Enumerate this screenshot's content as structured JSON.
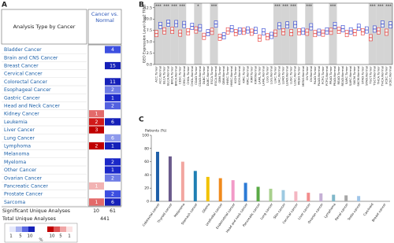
{
  "panel_labels": [
    "A",
    "B",
    "C"
  ],
  "table": {
    "header": {
      "title": "Analysis Type by Cancer",
      "column": "Cancer vs. Normal"
    },
    "rows": [
      {
        "name": "Bladder Cancer",
        "up": null,
        "down": {
          "value": 4,
          "color": "#3d4fe0"
        }
      },
      {
        "name": "Brain and CNS Cancer",
        "up": null,
        "down": null
      },
      {
        "name": "Breast Cancer",
        "up": null,
        "down": {
          "value": 15,
          "color": "#1520b8"
        }
      },
      {
        "name": "Cervical Cancer",
        "up": null,
        "down": null
      },
      {
        "name": "Colorectal Cancer",
        "up": null,
        "down": {
          "value": 11,
          "color": "#1520b8"
        }
      },
      {
        "name": "Esophageal Cancer",
        "up": null,
        "down": {
          "value": 2,
          "color": "#6f7de6"
        }
      },
      {
        "name": "Gastric Cancer",
        "up": null,
        "down": {
          "value": 1,
          "color": "#1b28c8"
        }
      },
      {
        "name": "Head and Neck Cancer",
        "up": null,
        "down": {
          "value": 2,
          "color": "#5361e0"
        }
      },
      {
        "name": "Kidney Cancer",
        "up": {
          "value": 1,
          "color": "#e36a6a"
        },
        "down": null
      },
      {
        "name": "Leukemia",
        "up": {
          "value": 2,
          "color": "#d11919"
        },
        "down": {
          "value": 6,
          "color": "#1520b8"
        }
      },
      {
        "name": "Liver Cancer",
        "up": {
          "value": 3,
          "color": "#c00000"
        },
        "down": null
      },
      {
        "name": "Lung Cancer",
        "up": null,
        "down": {
          "value": 6,
          "color": "#8e9aec"
        }
      },
      {
        "name": "Lymphoma",
        "up": {
          "value": 2,
          "color": "#c00000"
        },
        "down": {
          "value": 1,
          "color": "#1520b8"
        }
      },
      {
        "name": "Melanoma",
        "up": null,
        "down": null
      },
      {
        "name": "Myeloma",
        "up": null,
        "down": {
          "value": 2,
          "color": "#1b28c8"
        }
      },
      {
        "name": "Other Cancer",
        "up": null,
        "down": {
          "value": 1,
          "color": "#1b28c8"
        }
      },
      {
        "name": "Ovarian Cancer",
        "up": null,
        "down": {
          "value": 2,
          "color": "#6f7de6"
        }
      },
      {
        "name": "Pancreatic Cancer",
        "up": {
          "value": 1,
          "color": "#f2b3b3"
        },
        "down": null
      },
      {
        "name": "Prostate Cancer",
        "up": null,
        "down": {
          "value": 2,
          "color": "#3d4fe0"
        }
      },
      {
        "name": "Sarcoma",
        "up": {
          "value": 1,
          "color": "#e36a6a"
        },
        "down": {
          "value": 6,
          "color": "#1520b8"
        }
      }
    ],
    "significant": {
      "label": "Significant Unique Analyses",
      "up": 10,
      "down": 61
    },
    "total": {
      "label": "Total Unique Analyses",
      "value": 441
    },
    "legend": {
      "blue_labels": [
        1,
        5,
        10
      ],
      "red_labels": [
        10,
        5,
        1
      ],
      "unit": "%",
      "blue_colors": [
        "#e6e9fb",
        "#a9b2f0",
        "#5a68e2",
        "#1520b8"
      ],
      "red_colors": [
        "#c00000",
        "#e05555",
        "#f0a5a5",
        "#fbe3e3"
      ]
    }
  },
  "chart_data": [
    {
      "type": "box",
      "y_label": "GEO Expression Level (log2 TPM)",
      "categories": [
        "ACC.Tumor",
        "ACC.Normal",
        "BLCA.Tumor",
        "BLCA.Normal",
        "BRCA.Tumor",
        "BRCA.Normal",
        "CESC.Tumor",
        "CESC.Normal",
        "CHOL.Tumor",
        "CHOL.Normal",
        "COAD.Tumor",
        "COAD.Normal",
        "DLBC.Tumor",
        "DLBC.Normal",
        "ESCA.Tumor",
        "ESCA.Normal",
        "GBM.Tumor",
        "GBM.Normal",
        "HNSC.Tumor",
        "HNSC.Normal",
        "KICH.Tumor",
        "KICH.Normal",
        "KIRC.Tumor",
        "KIRC.Normal",
        "KIRP.Tumor",
        "KIRP.Normal",
        "LAML.Tumor",
        "LAML.Normal",
        "LGG.Tumor",
        "LGG.Normal",
        "LIHC.Tumor",
        "LIHC.Normal",
        "LUAD.Tumor",
        "LUAD.Normal",
        "LUSC.Tumor",
        "LUSC.Normal",
        "MESO.Tumor",
        "MESO.Normal",
        "OV.Tumor",
        "OV.Normal",
        "PAAD.Tumor",
        "PAAD.Normal",
        "PCPG.Tumor",
        "PCPG.Normal",
        "PRAD.Tumor",
        "PRAD.Normal",
        "READ.Tumor",
        "READ.Normal",
        "SARC.Tumor",
        "SARC.Normal",
        "SKCM.Tumor",
        "SKCM.Normal",
        "STAD.Tumor",
        "STAD.Normal",
        "TGCT.Tumor",
        "TGCT.Normal",
        "THCA.Tumor",
        "THCA.Normal",
        "UCEC.Tumor",
        "UCEC.Normal"
      ],
      "median": [
        6.8,
        8.6,
        7.4,
        9.1,
        7.5,
        9.0,
        6.9,
        8.8,
        7.2,
        8.4,
        7.6,
        8.1,
        6.2,
        7.0,
        7.3,
        8.9,
        6.0,
        6.3,
        7.4,
        7.9,
        7.0,
        7.4,
        7.3,
        7.6,
        7.1,
        7.5,
        5.8,
        7.2,
        6.1,
        6.4,
        6.9,
        8.5,
        7.2,
        8.7,
        7.0,
        8.8,
        7.2,
        7.3,
        7.1,
        8.3,
        6.8,
        7.1,
        6.9,
        7.4,
        7.3,
        8.6,
        7.5,
        7.9,
        6.8,
        7.4,
        7.0,
        8.2,
        7.2,
        7.6,
        5.9,
        7.8,
        7.4,
        8.9,
        7.1,
        8.7
      ],
      "q1": [
        6.1,
        7.9,
        6.7,
        8.4,
        6.8,
        8.3,
        6.2,
        8.1,
        6.5,
        7.7,
        6.9,
        7.4,
        5.5,
        6.3,
        6.6,
        8.2,
        5.3,
        5.6,
        6.7,
        7.2,
        6.3,
        6.7,
        6.6,
        6.9,
        6.4,
        6.8,
        5.1,
        6.5,
        5.4,
        5.7,
        6.2,
        7.8,
        6.5,
        8.0,
        6.3,
        8.1,
        6.5,
        6.6,
        6.4,
        7.6,
        6.1,
        6.4,
        6.2,
        6.7,
        6.6,
        7.9,
        6.8,
        7.2,
        6.1,
        6.7,
        6.3,
        7.5,
        6.5,
        6.9,
        5.2,
        7.1,
        6.7,
        8.2,
        6.4,
        8.0
      ],
      "q3": [
        7.5,
        9.3,
        8.1,
        9.8,
        8.2,
        9.7,
        7.6,
        9.5,
        7.9,
        9.1,
        8.3,
        8.8,
        6.9,
        7.7,
        8.0,
        9.6,
        6.7,
        7.0,
        8.1,
        8.6,
        7.7,
        8.1,
        8.0,
        8.3,
        7.8,
        8.2,
        6.5,
        7.9,
        6.8,
        7.1,
        7.6,
        9.2,
        7.9,
        9.4,
        7.7,
        9.5,
        7.9,
        8.0,
        7.8,
        9.0,
        7.5,
        7.8,
        7.6,
        8.1,
        8.0,
        9.3,
        8.2,
        8.6,
        7.5,
        8.1,
        7.7,
        8.9,
        7.9,
        8.3,
        6.6,
        8.5,
        8.1,
        9.6,
        7.8,
        9.4
      ],
      "box_colors": [
        "#e8332f",
        "#2b3fd1"
      ],
      "annotations": [
        {
          "label": "***",
          "category_index": 0
        },
        {
          "label": "***",
          "category_index": 2
        },
        {
          "label": "***",
          "category_index": 4
        },
        {
          "label": "***",
          "category_index": 6
        },
        {
          "label": "*",
          "category_index": 10
        },
        {
          "label": "***",
          "category_index": 14
        },
        {
          "label": "***",
          "category_index": 30
        },
        {
          "label": "***",
          "category_index": 32
        },
        {
          "label": "***",
          "category_index": 34
        },
        {
          "label": "***",
          "category_index": 38
        },
        {
          "label": "***",
          "category_index": 44
        },
        {
          "label": "***",
          "category_index": 54
        },
        {
          "label": "***",
          "category_index": 56
        },
        {
          "label": "***",
          "category_index": 58
        }
      ],
      "ylim": [
        0,
        13.5
      ],
      "yticks": [
        {
          "value": 0,
          "label": "0.0"
        },
        2.5,
        {
          "value": 5,
          "label": "5.0"
        },
        7.5,
        {
          "value": 10,
          "label": "10.0"
        },
        12.5
      ]
    },
    {
      "type": "bar",
      "y_label": "Patients (%)",
      "categories": [
        "Colorectal cancer",
        "Thyroid cancer",
        "Melanoma",
        "Stomach cancer",
        "Glioma",
        "Urothelial cancer",
        "Endometrial cancer",
        "Head and neck cancer",
        "Pancreatic cancer",
        "Lung cancer",
        "Skin cancer",
        "Cervical cancer",
        "Liver cancer",
        "Ovarian cancer",
        "Lymphoma",
        "Renal cancer",
        "Testis cancer",
        "Carcinoid",
        "Breast cancer"
      ],
      "values": [
        75,
        68,
        60,
        46,
        37,
        35,
        32,
        28,
        22,
        19,
        17,
        15,
        13,
        12,
        10,
        9,
        8,
        0,
        0
      ],
      "colors": [
        "#1f5fa8",
        "#6a5a8c",
        "#f2a6a0",
        "#1f7fb4",
        "#f2c200",
        "#f08a1c",
        "#f29ac8",
        "#2c7bd6",
        "#5aaa46",
        "#a8d08d",
        "#9ecae1",
        "#f4b6c2",
        "#f28c8c",
        "#c5b0d5",
        "#7fb7c9",
        "#a6a6a6",
        "#9fc5e8",
        "#cccccc",
        "#cccccc"
      ],
      "ylim": [
        0,
        100
      ],
      "yticks": [
        0,
        20,
        40,
        60,
        80,
        100
      ]
    }
  ]
}
